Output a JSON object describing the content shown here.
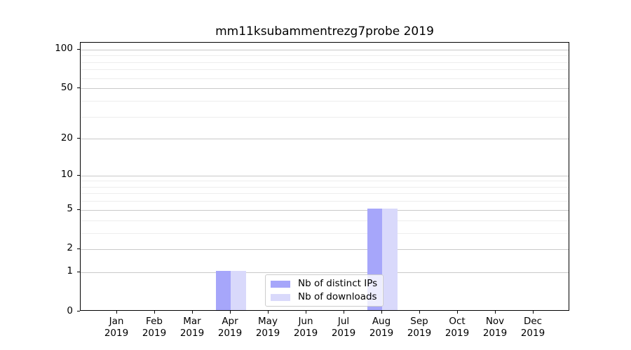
{
  "chart_data": {
    "type": "bar",
    "title": "mm11ksubammentrezg7probe 2019",
    "categories": [
      {
        "month": "Jan",
        "year": "2019"
      },
      {
        "month": "Feb",
        "year": "2019"
      },
      {
        "month": "Mar",
        "year": "2019"
      },
      {
        "month": "Apr",
        "year": "2019"
      },
      {
        "month": "May",
        "year": "2019"
      },
      {
        "month": "Jun",
        "year": "2019"
      },
      {
        "month": "Jul",
        "year": "2019"
      },
      {
        "month": "Aug",
        "year": "2019"
      },
      {
        "month": "Sep",
        "year": "2019"
      },
      {
        "month": "Oct",
        "year": "2019"
      },
      {
        "month": "Nov",
        "year": "2019"
      },
      {
        "month": "Dec",
        "year": "2019"
      }
    ],
    "series": [
      {
        "name": "Nb of distinct IPs",
        "color": "#a6a6fa",
        "values": [
          0,
          0,
          0,
          1,
          0,
          0,
          0,
          5,
          0,
          0,
          0,
          0
        ]
      },
      {
        "name": "Nb of downloads",
        "color": "#d9d9fb",
        "values": [
          0,
          0,
          0,
          1,
          0,
          0,
          0,
          5,
          0,
          0,
          0,
          0
        ]
      }
    ],
    "xlabel": "",
    "ylabel": "",
    "yscale": "log1p",
    "ylim": [
      0,
      113
    ],
    "y_major_ticks": [
      0,
      1,
      2,
      5,
      10,
      20,
      50,
      100
    ],
    "y_minor_gridlines": [
      3,
      4,
      6,
      7,
      8,
      9,
      30,
      40,
      60,
      70,
      80,
      90
    ],
    "grid": "horizontal",
    "legend_location": "lower-center-inside"
  },
  "colors": {
    "major_grid": "#c9c9c9",
    "minor_grid": "#ededed",
    "axis": "#000000",
    "legend_border": "#cccccc",
    "background": "#ffffff"
  }
}
